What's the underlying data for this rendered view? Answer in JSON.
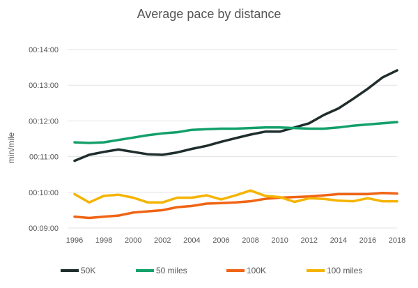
{
  "chart_data": {
    "type": "line",
    "title": "Average pace by distance",
    "xlabel": "",
    "ylabel": "min/mile",
    "x": [
      1996,
      1997,
      1998,
      1999,
      2000,
      2001,
      2002,
      2003,
      2004,
      2005,
      2006,
      2007,
      2008,
      2009,
      2010,
      2011,
      2012,
      2013,
      2014,
      2015,
      2016,
      2017,
      2018
    ],
    "x_tick_labels": [
      "1996",
      "1998",
      "2000",
      "2002",
      "2004",
      "2006",
      "2008",
      "2010",
      "2012",
      "2014",
      "2016",
      "2018"
    ],
    "y_tick_labels": [
      "00:09:00",
      "00:10:00",
      "00:11:00",
      "00:12:00",
      "00:13:00",
      "00:14:00"
    ],
    "ylim": [
      540,
      840
    ],
    "y_unit_note": "values in seconds per mile",
    "grid": "horizontal",
    "legend_position": "bottom",
    "series": [
      {
        "name": "50K",
        "color": "#1f2d2d",
        "values": [
          653,
          663,
          668,
          672,
          668,
          664,
          663,
          667,
          673,
          678,
          685,
          691,
          697,
          702,
          702,
          709,
          716,
          730,
          741,
          757,
          774,
          793,
          805
        ]
      },
      {
        "name": "50 miles",
        "color": "#13a06a",
        "values": [
          684,
          683,
          684,
          688,
          692,
          696,
          699,
          701,
          705,
          706,
          707,
          707,
          708,
          709,
          709,
          708,
          707,
          707,
          709,
          712,
          714,
          716,
          718
        ]
      },
      {
        "name": "100K",
        "color": "#f06414",
        "values": [
          559,
          557,
          559,
          561,
          566,
          568,
          570,
          575,
          577,
          581,
          582,
          583,
          585,
          589,
          591,
          592,
          593,
          595,
          597,
          597,
          597,
          599,
          598
        ]
      },
      {
        "name": "100 miles",
        "color": "#f5b400",
        "values": [
          597,
          583,
          594,
          596,
          591,
          583,
          583,
          591,
          591,
          595,
          588,
          595,
          603,
          594,
          592,
          584,
          590,
          589,
          586,
          585,
          590,
          585,
          585
        ]
      }
    ]
  }
}
